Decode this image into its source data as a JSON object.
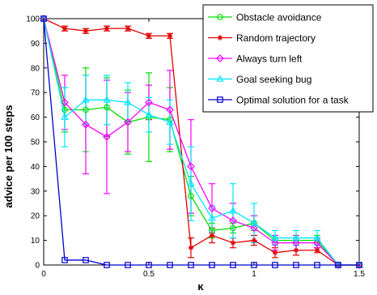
{
  "chart_data": {
    "type": "line",
    "title": "",
    "xlabel": "κ",
    "ylabel": "advice per 100 steps",
    "xlim": [
      0,
      1.5
    ],
    "ylim": [
      0,
      100
    ],
    "xticks": [
      "0",
      "0.5",
      "1",
      "1.5"
    ],
    "yticks": [
      "0",
      "10",
      "20",
      "30",
      "40",
      "50",
      "60",
      "70",
      "80",
      "90",
      "100"
    ],
    "grid": false,
    "legend_position": "top-right",
    "x": [
      0,
      0.1,
      0.2,
      0.3,
      0.4,
      0.5,
      0.6,
      0.7,
      0.8,
      0.9,
      1.0,
      1.1,
      1.2,
      1.3,
      1.4,
      1.5
    ],
    "series": [
      {
        "name": "Obstacle avoidance",
        "color": "#00e000",
        "marker": "circle",
        "values": [
          100,
          63,
          63,
          64,
          58,
          60,
          59,
          28,
          14,
          15,
          17,
          10,
          10,
          10,
          0,
          0
        ],
        "errors": [
          0,
          9,
          17,
          12,
          13,
          18,
          13,
          8,
          3,
          2,
          3,
          2,
          2,
          2,
          0,
          0
        ]
      },
      {
        "name": "Random trajectory",
        "color": "#e00000",
        "marker": "star",
        "values": [
          100,
          96,
          95,
          96,
          96,
          93,
          93,
          7,
          12,
          9,
          10,
          5,
          6,
          6,
          0,
          0
        ],
        "errors": [
          0,
          1,
          1,
          1,
          1,
          1,
          1,
          4,
          3,
          2,
          2,
          2,
          2,
          1,
          0,
          0
        ]
      },
      {
        "name": "Always turn left",
        "color": "#ff00ff",
        "marker": "diamond",
        "values": [
          100,
          66,
          57,
          52,
          58,
          66,
          63,
          40,
          23,
          18,
          15,
          9,
          9,
          9,
          0,
          0
        ],
        "errors": [
          0,
          11,
          20,
          23,
          12,
          7,
          16,
          19,
          10,
          7,
          5,
          3,
          3,
          2,
          0,
          0
        ]
      },
      {
        "name": "Goal seeking bug",
        "color": "#00e5ff",
        "marker": "triangle",
        "values": [
          100,
          60,
          67,
          67,
          66,
          61,
          58,
          33,
          19,
          22,
          17,
          11,
          11,
          11,
          0,
          0
        ],
        "errors": [
          0,
          12,
          10,
          10,
          8,
          7,
          9,
          15,
          5,
          11,
          8,
          3,
          3,
          3,
          0,
          0
        ]
      },
      {
        "name": "Optimal solution for a task",
        "color": "#0000cc",
        "marker": "square",
        "values": [
          100,
          2,
          2,
          0,
          0,
          0,
          0,
          0,
          0,
          0,
          0,
          0,
          0,
          0,
          0,
          0
        ],
        "errors": [
          0,
          0,
          0,
          0,
          0,
          0,
          0,
          0,
          0,
          0,
          0,
          0,
          0,
          0,
          0,
          0
        ]
      }
    ]
  }
}
